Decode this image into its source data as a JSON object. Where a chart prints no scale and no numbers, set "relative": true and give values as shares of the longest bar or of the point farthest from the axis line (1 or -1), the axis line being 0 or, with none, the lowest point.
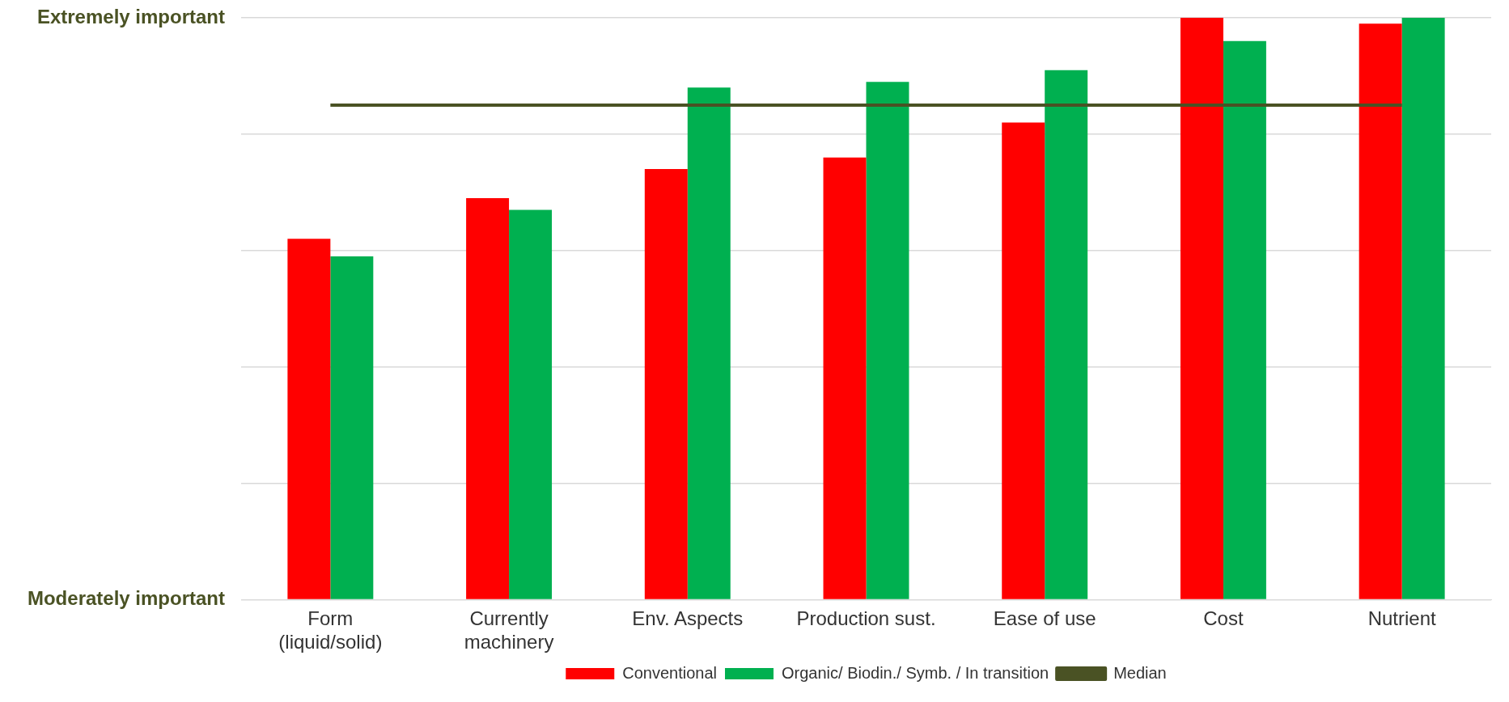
{
  "chart_data": {
    "type": "bar",
    "relative": true,
    "categories": [
      "Form (liquid/solid)",
      "Currently machinery",
      "Env. Aspects",
      "Production sust.",
      "Ease of use",
      "Cost",
      "Nutrient"
    ],
    "series": [
      {
        "name": "Conventional",
        "color": "#ff0000",
        "values": [
          0.62,
          0.69,
          0.74,
          0.76,
          0.82,
          1.0,
          0.99
        ]
      },
      {
        "name": "Organic/ Biodin./ Symb. / In transition",
        "color": "#00b050",
        "values": [
          0.59,
          0.67,
          0.88,
          0.89,
          0.91,
          0.96,
          1.0
        ]
      },
      {
        "name": "Median",
        "type": "line",
        "color": "#4a5224",
        "values": [
          0.85,
          0.85,
          0.85,
          0.85,
          0.85,
          0.85,
          0.85
        ],
        "marker": "none"
      }
    ],
    "annotations": [
      "Extremely important",
      "Moderately important"
    ],
    "grid": "y",
    "legend": "bottom"
  }
}
